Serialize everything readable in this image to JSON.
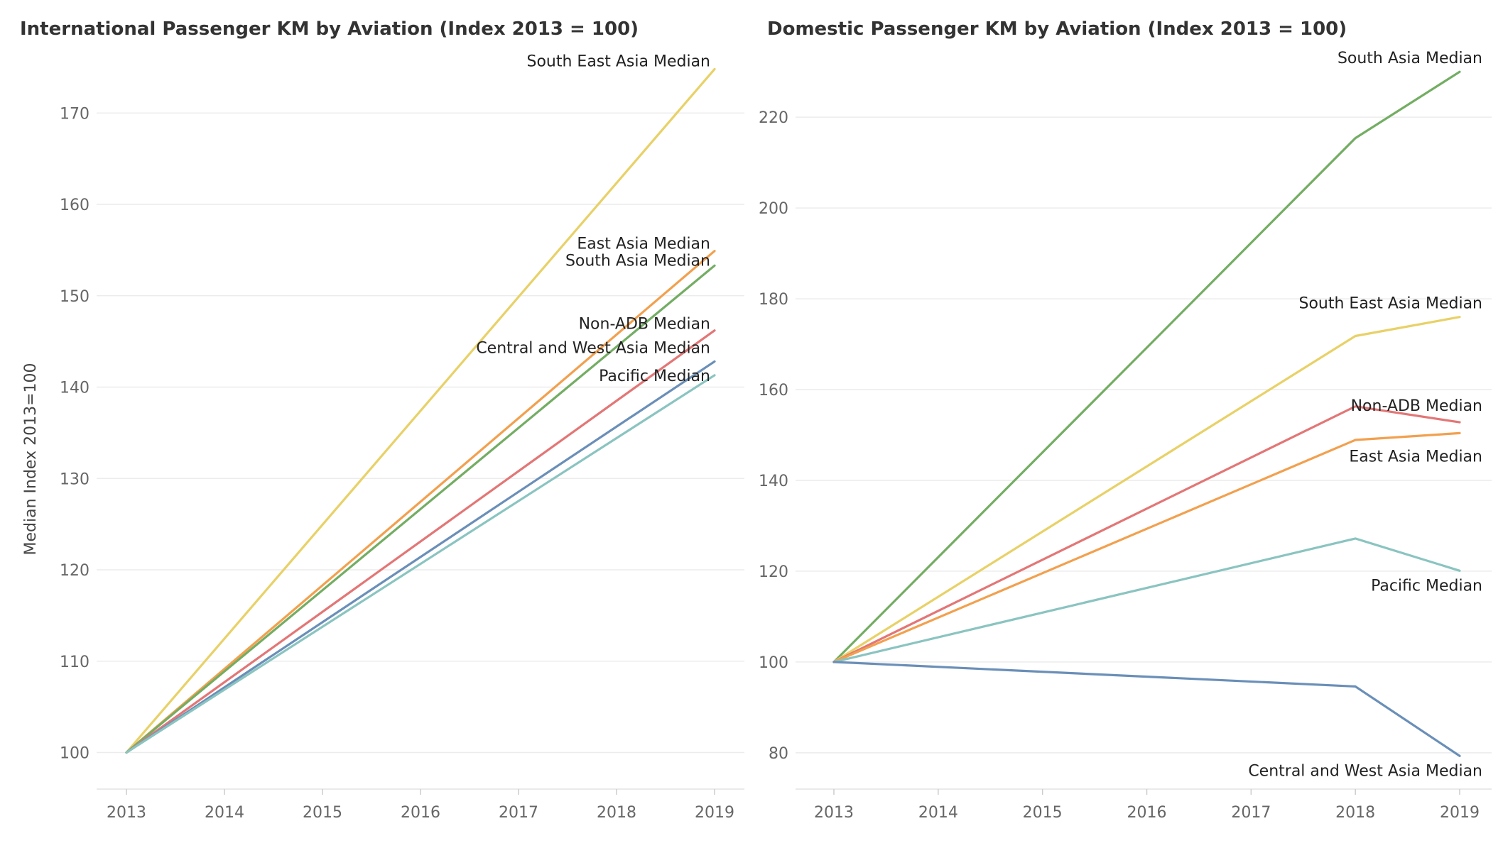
{
  "chart_data": [
    {
      "type": "line",
      "title": "International Passenger KM by Aviation (Index 2013 = 100)",
      "ylabel": "Median Index 2013=100",
      "xlabel": "",
      "x": [
        "2013",
        "2014",
        "2015",
        "2016",
        "2017",
        "2018",
        "2019"
      ],
      "xlim": [
        2013,
        2019
      ],
      "ylim": [
        96,
        176
      ],
      "yticks": [
        100,
        110,
        120,
        130,
        140,
        150,
        160,
        170
      ],
      "grid": "horizontal",
      "series": [
        {
          "name": "South East Asia Median",
          "color": "#e8d167",
          "x": [
            2013,
            2019
          ],
          "values": [
            100,
            174.8
          ]
        },
        {
          "name": "East Asia Median",
          "color": "#f2a04e",
          "x": [
            2013,
            2019
          ],
          "values": [
            100,
            154.9
          ]
        },
        {
          "name": "South Asia Median",
          "color": "#73ad63",
          "x": [
            2013,
            2019
          ],
          "values": [
            100,
            153.3
          ]
        },
        {
          "name": "Non-ADB Median",
          "color": "#e37676",
          "x": [
            2013,
            2019
          ],
          "values": [
            100,
            146.2
          ]
        },
        {
          "name": "Central and West Asia Median",
          "color": "#6a8fb8",
          "x": [
            2013,
            2019
          ],
          "values": [
            100,
            142.8
          ]
        },
        {
          "name": "Pacific Median",
          "color": "#8ac4c0",
          "x": [
            2013,
            2019
          ],
          "values": [
            100,
            141.3
          ]
        }
      ]
    },
    {
      "type": "line",
      "title": "Domestic Passenger KM by Aviation (Index 2013 = 100)",
      "ylabel": "",
      "xlabel": "",
      "x": [
        "2013",
        "2014",
        "2015",
        "2016",
        "2017",
        "2018",
        "2019"
      ],
      "xlim": [
        2013,
        2019
      ],
      "ylim": [
        72,
        233
      ],
      "yticks": [
        80,
        100,
        120,
        140,
        160,
        180,
        200,
        220
      ],
      "grid": "horizontal",
      "series": [
        {
          "name": "South Asia Median",
          "color": "#73ad63",
          "x": [
            2013,
            2018,
            2019
          ],
          "values": [
            100,
            215.4,
            230.0
          ]
        },
        {
          "name": "South East Asia Median",
          "color": "#e8d167",
          "x": [
            2013,
            2018,
            2019
          ],
          "values": [
            100,
            171.8,
            176.0
          ]
        },
        {
          "name": "Non-ADB Median",
          "color": "#e37676",
          "x": [
            2013,
            2018,
            2019
          ],
          "values": [
            100,
            156.3,
            152.8
          ]
        },
        {
          "name": "East Asia Median",
          "color": "#f2a04e",
          "x": [
            2013,
            2018,
            2019
          ],
          "values": [
            100,
            148.9,
            150.4
          ]
        },
        {
          "name": "Pacific Median",
          "color": "#8ac4c0",
          "x": [
            2013,
            2018,
            2019
          ],
          "values": [
            100,
            127.2,
            120.1
          ]
        },
        {
          "name": "Central and West Asia Median",
          "color": "#6a8fb8",
          "x": [
            2013,
            2018,
            2019
          ],
          "values": [
            100,
            94.6,
            79.3
          ]
        }
      ]
    }
  ]
}
